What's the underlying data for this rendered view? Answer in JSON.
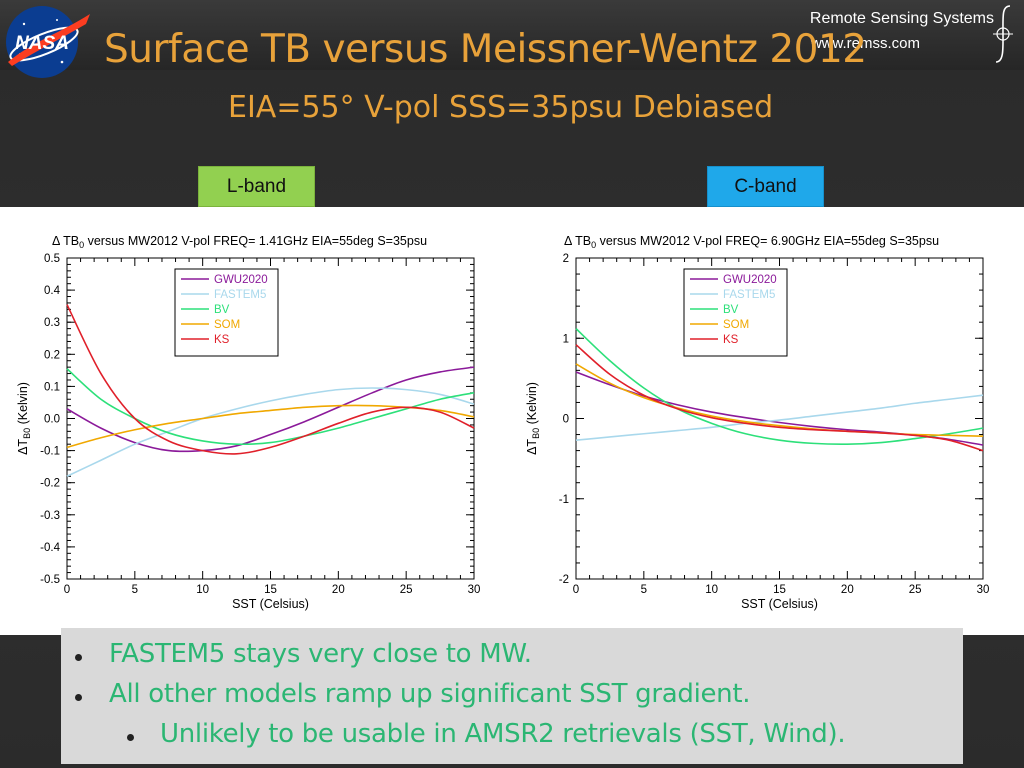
{
  "header": {
    "title": "Surface TB versus Meissner-Wentz 2012",
    "subtitle": "EIA=55° V-pol  SSS=35psu  Debiased",
    "logo_text": "NASA",
    "org_name": "Remote Sensing Systems",
    "org_url": "www.remss.com"
  },
  "band_labels": {
    "left": "L-band",
    "right": "C-band"
  },
  "colors": {
    "title": "#e8a23a",
    "bullet_text": "#2bb673",
    "GWU2020": "#8b1a9a",
    "FASTEM5": "#a9d8ec",
    "BV": "#2de07a",
    "SOM": "#f0a800",
    "KS": "#e0202a"
  },
  "chart_data": [
    {
      "type": "line",
      "title": "Δ TB",
      "title_sub": "0",
      "title_rest": "  versus MW2012 V-pol   FREQ= 1.41GHz  EIA=55deg S=35psu",
      "xlabel": "SST (Celsius)",
      "ylabel_main": "ΔT",
      "ylabel_sub": "B0",
      "ylabel_rest": " (Kelvin)",
      "xlim": [
        0,
        30
      ],
      "ylim": [
        -0.5,
        0.5
      ],
      "xticks": [
        "0",
        "5",
        "10",
        "15",
        "20",
        "25",
        "30"
      ],
      "yticks": [
        "-0.5",
        "-0.4",
        "-0.3",
        "-0.2",
        "-0.1",
        "0.0",
        "0.1",
        "0.2",
        "0.3",
        "0.4",
        "0.5"
      ],
      "ytick_values": [
        -0.5,
        -0.4,
        -0.3,
        -0.2,
        -0.1,
        0.0,
        0.1,
        0.2,
        0.3,
        0.4,
        0.5
      ],
      "legend_position": "top-left",
      "x": [
        0,
        2.5,
        5,
        7.5,
        10,
        12.5,
        15,
        17.5,
        20,
        22.5,
        25,
        27.5,
        30
      ],
      "series": [
        {
          "name": "GWU2020",
          "color": "#8b1a9a",
          "values": [
            0.03,
            -0.03,
            -0.075,
            -0.1,
            -0.1,
            -0.085,
            -0.05,
            -0.01,
            0.035,
            0.08,
            0.12,
            0.145,
            0.16
          ]
        },
        {
          "name": "FASTEM5",
          "color": "#a9d8ec",
          "values": [
            -0.18,
            -0.13,
            -0.08,
            -0.04,
            0.0,
            0.03,
            0.055,
            0.075,
            0.09,
            0.095,
            0.09,
            0.075,
            0.045
          ]
        },
        {
          "name": "BV",
          "color": "#2de07a",
          "values": [
            0.155,
            0.06,
            0.0,
            -0.045,
            -0.07,
            -0.08,
            -0.075,
            -0.055,
            -0.03,
            0.0,
            0.03,
            0.06,
            0.08
          ]
        },
        {
          "name": "SOM",
          "color": "#f0a800",
          "values": [
            -0.09,
            -0.06,
            -0.035,
            -0.015,
            0.0,
            0.015,
            0.025,
            0.035,
            0.04,
            0.04,
            0.035,
            0.025,
            0.005
          ]
        },
        {
          "name": "KS",
          "color": "#e0202a",
          "values": [
            0.355,
            0.14,
            0.0,
            -0.07,
            -0.1,
            -0.11,
            -0.09,
            -0.055,
            -0.015,
            0.02,
            0.035,
            0.02,
            -0.03
          ]
        }
      ]
    },
    {
      "type": "line",
      "title": "Δ TB",
      "title_sub": "0",
      "title_rest": "  versus MW2012 V-pol   FREQ= 6.90GHz  EIA=55deg S=35psu",
      "xlabel": "SST (Celsius)",
      "ylabel_main": "ΔT",
      "ylabel_sub": "B0",
      "ylabel_rest": " (Kelvin)",
      "xlim": [
        0,
        30
      ],
      "ylim": [
        -2,
        2
      ],
      "xticks": [
        "0",
        "5",
        "10",
        "15",
        "20",
        "25",
        "30"
      ],
      "yticks": [
        "-2",
        "-1",
        "0",
        "1",
        "2"
      ],
      "ytick_values": [
        -2,
        -1,
        0,
        1,
        2
      ],
      "legend_position": "top-right",
      "x": [
        0,
        2.5,
        5,
        7.5,
        10,
        12.5,
        15,
        17.5,
        20,
        22.5,
        25,
        27.5,
        30
      ],
      "series": [
        {
          "name": "GWU2020",
          "color": "#8b1a9a",
          "values": [
            0.58,
            0.42,
            0.28,
            0.17,
            0.08,
            0.01,
            -0.05,
            -0.1,
            -0.14,
            -0.17,
            -0.21,
            -0.26,
            -0.33
          ]
        },
        {
          "name": "FASTEM5",
          "color": "#a9d8ec",
          "values": [
            -0.27,
            -0.23,
            -0.19,
            -0.15,
            -0.11,
            -0.06,
            -0.02,
            0.03,
            0.08,
            0.13,
            0.19,
            0.24,
            0.29
          ]
        },
        {
          "name": "BV",
          "color": "#2de07a",
          "values": [
            1.12,
            0.72,
            0.38,
            0.12,
            -0.06,
            -0.19,
            -0.27,
            -0.31,
            -0.32,
            -0.3,
            -0.25,
            -0.19,
            -0.12
          ]
        },
        {
          "name": "SOM",
          "color": "#f0a800",
          "values": [
            0.68,
            0.44,
            0.26,
            0.13,
            0.03,
            -0.04,
            -0.09,
            -0.13,
            -0.16,
            -0.18,
            -0.2,
            -0.21,
            -0.22
          ]
        },
        {
          "name": "KS",
          "color": "#e0202a",
          "values": [
            0.92,
            0.55,
            0.29,
            0.12,
            0.01,
            -0.06,
            -0.11,
            -0.14,
            -0.16,
            -0.18,
            -0.21,
            -0.27,
            -0.4
          ]
        }
      ]
    }
  ],
  "notes": {
    "bullets": [
      {
        "text": "FASTEM5 stays very close to MW.",
        "level": 1
      },
      {
        "text": "All other models ramp up significant SST gradient.",
        "level": 1
      },
      {
        "text": "Unlikely to be usable in AMSR2 retrievals (SST, Wind).",
        "level": 2
      }
    ]
  }
}
